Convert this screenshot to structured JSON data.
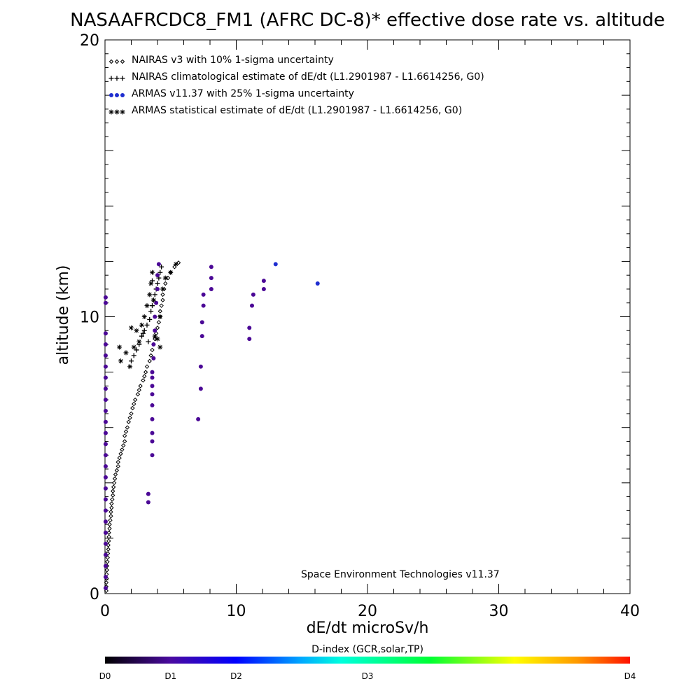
{
  "chart_data": {
    "type": "scatter",
    "title": "NASAAFRCDC8_FM1 (AFRC DC-8)* effective dose rate vs. altitude",
    "xlabel": "dE/dt microSv/h",
    "ylabel": "altitude (km)",
    "xlim": [
      0,
      40
    ],
    "ylim": [
      0,
      20
    ],
    "x_ticks": [
      "0",
      "10",
      "20",
      "30",
      "40"
    ],
    "y_ticks": [
      "0",
      "10",
      "20"
    ],
    "legend_position": "top-left",
    "annotation": "Space Environment Technologies v11.37",
    "colorbar": {
      "title": "D-index (GCR,solar,TP)",
      "labels": [
        {
          "text": "D0",
          "pos": 0
        },
        {
          "text": "D1",
          "pos": 0.125
        },
        {
          "text": "D2",
          "pos": 0.25
        },
        {
          "text": "D3",
          "pos": 0.5
        },
        {
          "text": "D4",
          "pos": 1
        }
      ],
      "stops": [
        {
          "pos": 0,
          "color": "#000000"
        },
        {
          "pos": 0.125,
          "color": "#4a0aa0"
        },
        {
          "pos": 0.25,
          "color": "#0000ff"
        },
        {
          "pos": 0.375,
          "color": "#00aaff"
        },
        {
          "pos": 0.45,
          "color": "#00ffdd"
        },
        {
          "pos": 0.62,
          "color": "#00ff33"
        },
        {
          "pos": 0.78,
          "color": "#ffff00"
        },
        {
          "pos": 0.9,
          "color": "#ff9900"
        },
        {
          "pos": 1,
          "color": "#ff1100"
        }
      ]
    },
    "series": [
      {
        "name": "NAIRAS v3 with 10% 1-sigma uncertainty",
        "marker": "diamond",
        "color": "#000000",
        "points": [
          [
            0.1,
            0.1
          ],
          [
            0.1,
            0.25
          ],
          [
            0.1,
            0.4
          ],
          [
            0.12,
            0.55
          ],
          [
            0.12,
            0.7
          ],
          [
            0.15,
            0.85
          ],
          [
            0.15,
            1.0
          ],
          [
            0.18,
            1.15
          ],
          [
            0.2,
            1.3
          ],
          [
            0.22,
            1.45
          ],
          [
            0.25,
            1.6
          ],
          [
            0.25,
            1.75
          ],
          [
            0.28,
            1.9
          ],
          [
            0.3,
            2.05
          ],
          [
            0.3,
            2.2
          ],
          [
            0.35,
            2.35
          ],
          [
            0.35,
            2.5
          ],
          [
            0.4,
            2.65
          ],
          [
            0.45,
            2.8
          ],
          [
            0.45,
            2.95
          ],
          [
            0.5,
            3.1
          ],
          [
            0.5,
            3.25
          ],
          [
            0.55,
            3.4
          ],
          [
            0.6,
            3.55
          ],
          [
            0.6,
            3.7
          ],
          [
            0.65,
            3.85
          ],
          [
            0.7,
            4.0
          ],
          [
            0.75,
            4.15
          ],
          [
            0.8,
            4.3
          ],
          [
            0.9,
            4.45
          ],
          [
            1.0,
            4.6
          ],
          [
            1.0,
            4.75
          ],
          [
            1.1,
            4.9
          ],
          [
            1.2,
            5.05
          ],
          [
            1.3,
            5.2
          ],
          [
            1.4,
            5.35
          ],
          [
            1.5,
            5.5
          ],
          [
            1.5,
            5.7
          ],
          [
            1.6,
            5.85
          ],
          [
            1.7,
            6.0
          ],
          [
            1.8,
            6.2
          ],
          [
            1.9,
            6.35
          ],
          [
            2.0,
            6.5
          ],
          [
            2.1,
            6.7
          ],
          [
            2.2,
            6.85
          ],
          [
            2.3,
            7.0
          ],
          [
            2.5,
            7.2
          ],
          [
            2.6,
            7.35
          ],
          [
            2.7,
            7.5
          ],
          [
            2.9,
            7.7
          ],
          [
            3.0,
            7.85
          ],
          [
            3.1,
            8.0
          ],
          [
            3.2,
            8.2
          ],
          [
            3.4,
            8.4
          ],
          [
            3.5,
            8.6
          ],
          [
            3.6,
            8.8
          ],
          [
            3.7,
            9.0
          ],
          [
            3.8,
            9.2
          ],
          [
            3.9,
            9.4
          ],
          [
            4.0,
            9.6
          ],
          [
            4.1,
            9.8
          ],
          [
            4.2,
            10.0
          ],
          [
            4.2,
            10.2
          ],
          [
            4.3,
            10.4
          ],
          [
            4.4,
            10.6
          ],
          [
            4.4,
            10.8
          ],
          [
            4.5,
            11.0
          ],
          [
            4.6,
            11.2
          ],
          [
            4.8,
            11.4
          ],
          [
            5.0,
            11.6
          ],
          [
            5.3,
            11.8
          ],
          [
            5.6,
            11.95
          ]
        ]
      },
      {
        "name": "NAIRAS climatological estimate of dE/dt (L1.2901987 - L1.6614256, G0)",
        "marker": "plus",
        "color": "#000000",
        "points": [
          [
            2.0,
            8.4
          ],
          [
            2.2,
            8.6
          ],
          [
            2.4,
            8.8
          ],
          [
            2.6,
            9.0
          ],
          [
            2.8,
            9.3
          ],
          [
            3.0,
            9.5
          ],
          [
            3.2,
            9.7
          ],
          [
            3.4,
            9.9
          ],
          [
            3.5,
            10.2
          ],
          [
            3.6,
            10.4
          ],
          [
            3.7,
            10.6
          ],
          [
            3.8,
            10.8
          ],
          [
            3.9,
            11.0
          ],
          [
            4.0,
            11.2
          ],
          [
            4.1,
            11.4
          ],
          [
            4.2,
            11.6
          ],
          [
            4.3,
            11.8
          ],
          [
            3.3,
            9.1
          ],
          [
            2.9,
            9.4
          ],
          [
            3.6,
            11.3
          ]
        ]
      },
      {
        "name": "ARMAS v11.37 with 25% 1-sigma uncertainty",
        "marker": "dot",
        "color": "#4b0896",
        "points": [
          [
            0.05,
            0.2
          ],
          [
            0.05,
            0.6
          ],
          [
            0.05,
            1.0
          ],
          [
            0.05,
            1.4
          ],
          [
            0.05,
            1.8
          ],
          [
            0.05,
            2.2
          ],
          [
            0.05,
            2.6
          ],
          [
            0.05,
            3.0
          ],
          [
            0.05,
            3.4
          ],
          [
            0.05,
            3.8
          ],
          [
            0.05,
            4.2
          ],
          [
            0.05,
            4.6
          ],
          [
            0.05,
            5.0
          ],
          [
            0.05,
            5.4
          ],
          [
            0.05,
            5.8
          ],
          [
            0.05,
            6.2
          ],
          [
            0.05,
            6.6
          ],
          [
            0.05,
            7.0
          ],
          [
            0.05,
            7.4
          ],
          [
            0.05,
            7.8
          ],
          [
            0.05,
            8.2
          ],
          [
            0.05,
            8.6
          ],
          [
            0.05,
            9.0
          ],
          [
            0.05,
            9.4
          ],
          [
            0.05,
            10.5
          ],
          [
            0.05,
            10.7
          ],
          [
            3.3,
            3.3
          ],
          [
            3.3,
            3.6
          ],
          [
            3.6,
            5.0
          ],
          [
            3.6,
            5.5
          ],
          [
            3.6,
            5.8
          ],
          [
            3.6,
            6.3
          ],
          [
            3.6,
            6.8
          ],
          [
            3.6,
            7.2
          ],
          [
            3.6,
            7.5
          ],
          [
            3.6,
            7.8
          ],
          [
            3.6,
            8.0
          ],
          [
            3.7,
            8.5
          ],
          [
            3.7,
            9.0
          ],
          [
            3.8,
            9.5
          ],
          [
            3.8,
            10.0
          ],
          [
            3.9,
            10.5
          ],
          [
            4.0,
            11.0
          ],
          [
            4.0,
            11.5
          ],
          [
            4.1,
            11.9
          ],
          [
            7.1,
            6.3
          ],
          [
            7.3,
            7.4
          ],
          [
            7.3,
            8.2
          ],
          [
            7.4,
            9.3
          ],
          [
            7.4,
            9.8
          ],
          [
            7.5,
            10.4
          ],
          [
            7.5,
            10.8
          ],
          [
            8.1,
            11.0
          ],
          [
            8.1,
            11.4
          ],
          [
            8.1,
            11.8
          ],
          [
            11.0,
            9.6
          ],
          [
            11.0,
            9.2
          ],
          [
            11.2,
            10.4
          ],
          [
            11.3,
            10.8
          ],
          [
            12.1,
            11.0
          ],
          [
            12.1,
            11.3
          ]
        ]
      },
      {
        "name": "ARMAS v11.37 with 25% 1-sigma uncertainty",
        "marker": "dot",
        "color": "#1f2ed0",
        "points": [
          [
            13.0,
            11.9
          ],
          [
            16.2,
            11.2
          ]
        ]
      },
      {
        "name": "ARMAS statistical estimate of dE/dt (L1.2901987 - L1.6614256, G0)",
        "marker": "asterisk",
        "color": "#000000",
        "points": [
          [
            1.1,
            8.9
          ],
          [
            1.2,
            8.4
          ],
          [
            1.6,
            8.7
          ],
          [
            1.9,
            8.2
          ],
          [
            2.2,
            8.9
          ],
          [
            2.4,
            9.5
          ],
          [
            2.6,
            9.1
          ],
          [
            2.8,
            9.7
          ],
          [
            3.0,
            10.0
          ],
          [
            3.2,
            10.4
          ],
          [
            3.4,
            10.8
          ],
          [
            3.5,
            11.2
          ],
          [
            3.6,
            11.6
          ],
          [
            3.7,
            10.6
          ],
          [
            4.0,
            9.2
          ],
          [
            4.2,
            10.0
          ],
          [
            4.4,
            11.0
          ],
          [
            4.6,
            11.4
          ],
          [
            5.0,
            11.6
          ],
          [
            5.4,
            11.9
          ],
          [
            4.2,
            8.9
          ],
          [
            3.8,
            9.3
          ],
          [
            2.0,
            9.6
          ]
        ]
      }
    ]
  }
}
